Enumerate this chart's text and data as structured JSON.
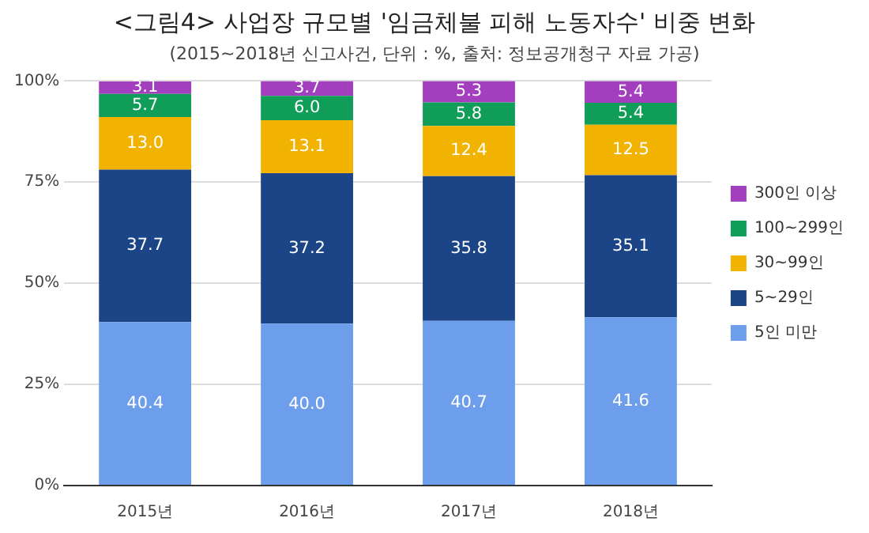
{
  "chart_data": {
    "type": "bar",
    "title": "<그림4> 사업장 규모별 '임금체불 피해 노동자수' 비중 변화",
    "subtitle": "(2015~2018년 신고사건, 단위 : %, 출처: 정보공개청구 자료 가공)",
    "categories": [
      "2015년",
      "2016년",
      "2017년",
      "2018년"
    ],
    "stacked": true,
    "series": [
      {
        "name": "5인 미만",
        "color": "#6d9eeb",
        "values": [
          40.4,
          40.0,
          40.7,
          41.6
        ],
        "value_labels": [
          "40.4",
          "40.0",
          "40.7",
          "41.6"
        ]
      },
      {
        "name": "5~29인",
        "color": "#1c4587",
        "values": [
          37.7,
          37.2,
          35.8,
          35.1
        ],
        "value_labels": [
          "37.7",
          "37.2",
          "35.8",
          "35.1"
        ]
      },
      {
        "name": "30~99인",
        "color": "#f1b300",
        "values": [
          13.0,
          13.1,
          12.4,
          12.5
        ],
        "value_labels": [
          "13.0",
          "13.1",
          "12.4",
          "12.5"
        ]
      },
      {
        "name": "100~299인",
        "color": "#0f9d58",
        "values": [
          5.7,
          6.0,
          5.8,
          5.4
        ],
        "value_labels": [
          "5.7",
          "6.0",
          "5.8",
          "5.4"
        ]
      },
      {
        "name": "300인 이상",
        "color": "#a33fbf",
        "values": [
          3.1,
          3.7,
          5.3,
          5.4
        ],
        "value_labels": [
          "3.1",
          "3.7",
          "5.3",
          "5.4"
        ]
      }
    ],
    "ylim": [
      0,
      100
    ],
    "yticks": [
      {
        "value": 0,
        "label": "0%"
      },
      {
        "value": 25,
        "label": "25%"
      },
      {
        "value": 50,
        "label": "50%"
      },
      {
        "value": 75,
        "label": "75%"
      },
      {
        "value": 100,
        "label": "100%"
      }
    ],
    "grid": "y",
    "legend": "right"
  }
}
